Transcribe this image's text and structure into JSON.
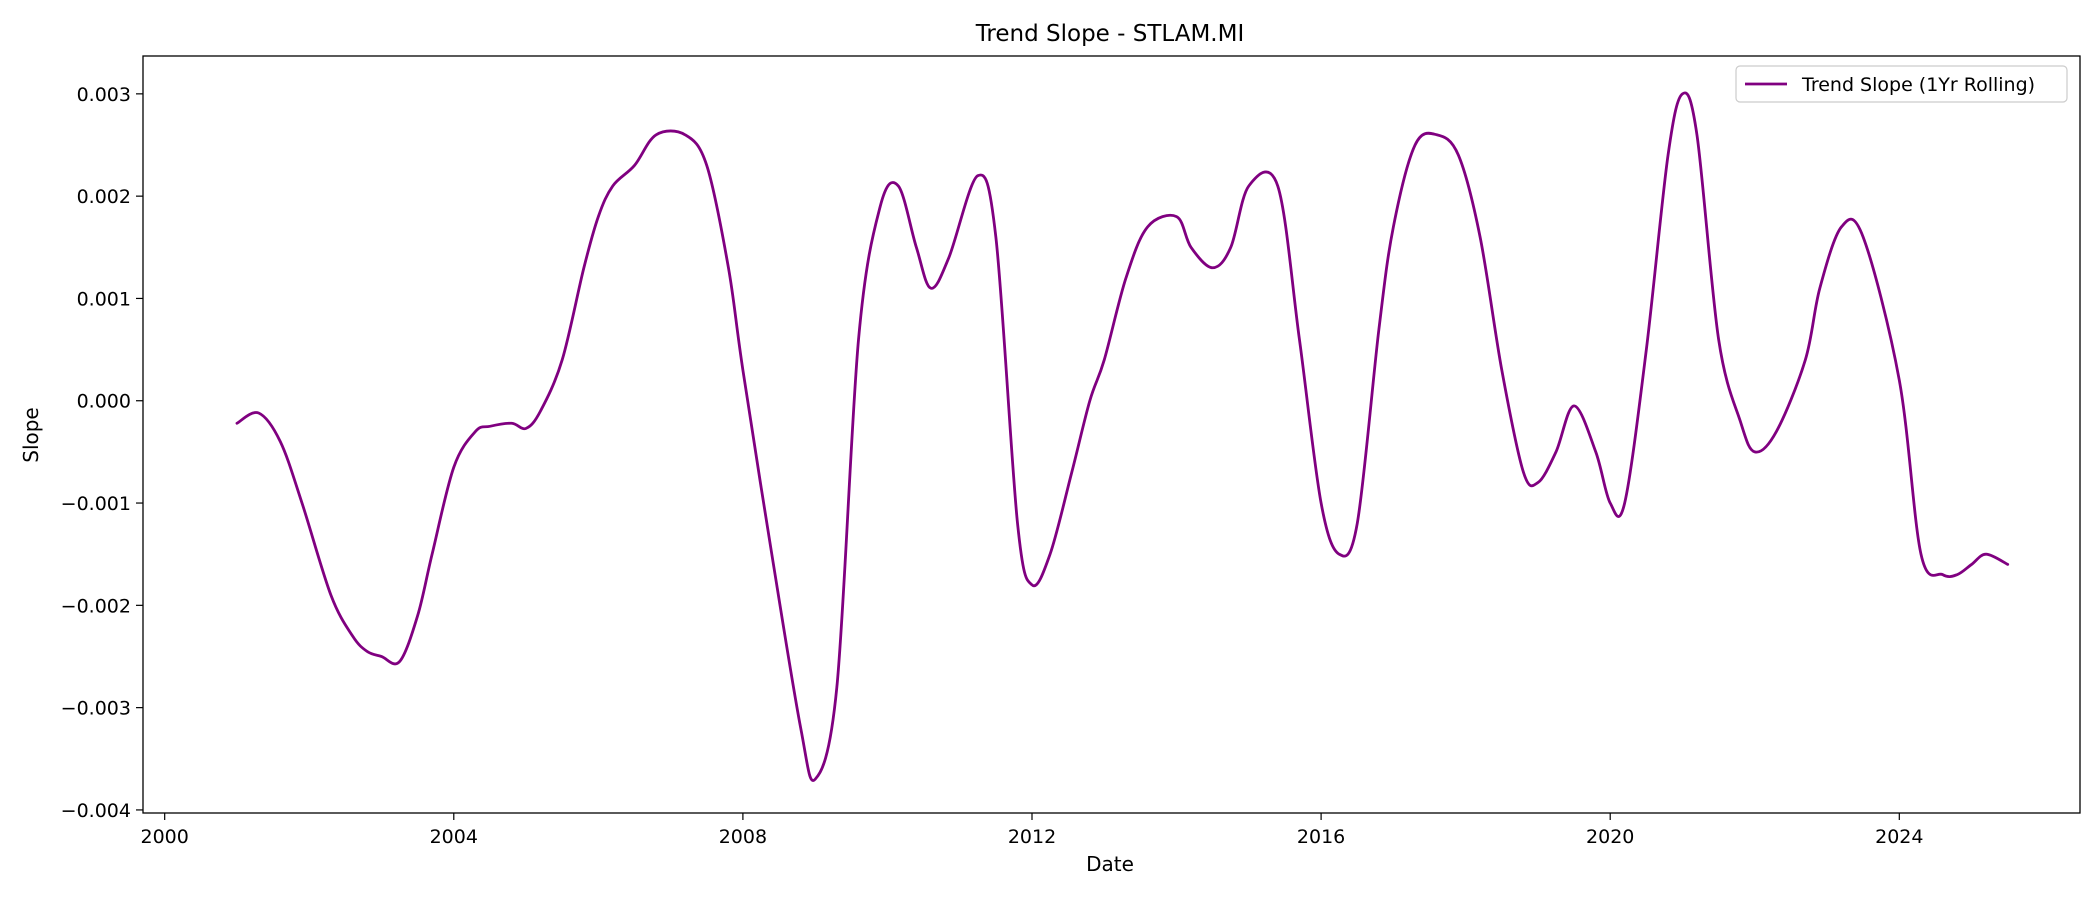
{
  "chart_data": {
    "type": "line",
    "title": "Trend Slope - STLAM.MI",
    "xlabel": "Date",
    "ylabel": "Slope",
    "xlim": [
      1999.7,
      2026.5
    ],
    "ylim": [
      -0.00403,
      0.00337
    ],
    "x_ticks": [
      2000,
      2004,
      2008,
      2012,
      2016,
      2020,
      2024
    ],
    "x_tick_labels": [
      "2000",
      "2004",
      "2008",
      "2012",
      "2016",
      "2020",
      "2024"
    ],
    "y_ticks": [
      -0.004,
      -0.003,
      -0.002,
      -0.001,
      0.0,
      0.001,
      0.002,
      0.003
    ],
    "y_tick_labels": [
      "−0.004",
      "−0.003",
      "−0.002",
      "−0.001",
      "0.000",
      "0.001",
      "0.002",
      "0.003"
    ],
    "grid": false,
    "legend_position": "top-right",
    "series": [
      {
        "name": "Trend Slope (1Yr Rolling)",
        "color": "#800080",
        "x": [
          2001.0,
          2001.3,
          2001.6,
          2001.9,
          2002.3,
          2002.6,
          2002.8,
          2003.0,
          2003.25,
          2003.5,
          2003.7,
          2004.0,
          2004.3,
          2004.5,
          2004.8,
          2005.0,
          2005.2,
          2005.5,
          2005.8,
          2006.0,
          2006.2,
          2006.5,
          2006.8,
          2007.2,
          2007.5,
          2007.8,
          2008.0,
          2008.4,
          2008.8,
          2009.0,
          2009.3,
          2009.6,
          2009.9,
          2010.15,
          2010.4,
          2010.6,
          2010.85,
          2011.25,
          2011.5,
          2011.8,
          2012.0,
          2012.25,
          2012.55,
          2012.8,
          2013.0,
          2013.3,
          2013.6,
          2014.0,
          2014.2,
          2014.5,
          2014.75,
          2015.0,
          2015.4,
          2015.7,
          2016.0,
          2016.25,
          2016.5,
          2016.8,
          2017.0,
          2017.3,
          2017.6,
          2017.9,
          2018.2,
          2018.5,
          2018.8,
          2019.0,
          2019.25,
          2019.5,
          2019.8,
          2020.0,
          2020.2,
          2020.5,
          2020.8,
          2021.0,
          2021.2,
          2021.5,
          2021.8,
          2022.0,
          2022.3,
          2022.7,
          2022.9,
          2023.2,
          2023.5,
          2024.0,
          2024.3,
          2024.6,
          2024.8,
          2025.0,
          2025.2,
          2025.5
        ],
        "values": [
          -0.00022,
          -0.00012,
          -0.0004,
          -0.001,
          -0.0019,
          -0.0023,
          -0.00245,
          -0.0025,
          -0.00255,
          -0.0021,
          -0.0015,
          -0.00065,
          -0.0003,
          -0.00025,
          -0.00022,
          -0.00027,
          -0.0001,
          0.0004,
          0.0013,
          0.0018,
          0.0021,
          0.0023,
          0.0026,
          0.0026,
          0.0023,
          0.0013,
          0.0003,
          -0.0015,
          -0.0032,
          -0.0037,
          -0.0028,
          0.0006,
          0.0019,
          0.0021,
          0.0015,
          0.0011,
          0.0014,
          0.0022,
          0.0016,
          -0.0012,
          -0.0018,
          -0.0015,
          -0.0007,
          0.0,
          0.0004,
          0.0012,
          0.0017,
          0.0018,
          0.0015,
          0.0013,
          0.0015,
          0.0021,
          0.0021,
          0.0006,
          -0.001,
          -0.0015,
          -0.0012,
          0.0007,
          0.0017,
          0.0025,
          0.0026,
          0.0024,
          0.0016,
          0.0003,
          -0.0007,
          -0.0008,
          -0.0005,
          -5e-05,
          -0.0005,
          -0.001,
          -0.001,
          0.0005,
          0.0024,
          0.003,
          0.0026,
          0.0006,
          -0.0002,
          -0.0005,
          -0.0003,
          0.0004,
          0.0011,
          0.0017,
          0.0016,
          0.0002,
          -0.0015,
          -0.0017,
          -0.0017,
          -0.0016,
          -0.0015,
          -0.0016
        ]
      }
    ]
  }
}
